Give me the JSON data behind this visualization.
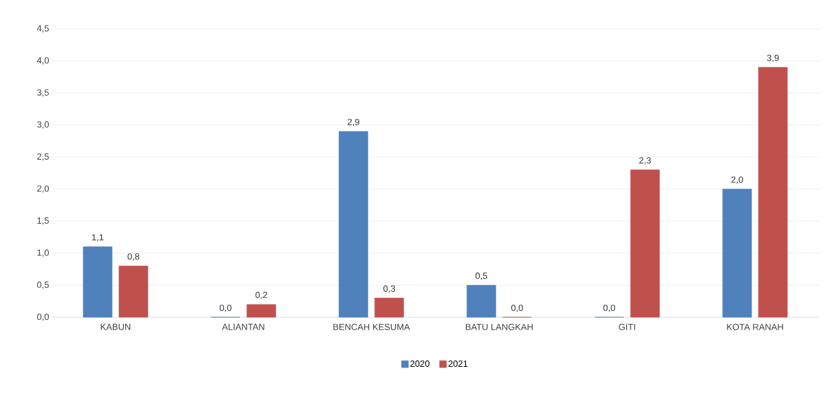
{
  "chart_data": {
    "type": "bar",
    "categories": [
      "KABUN",
      "ALIANTAN",
      "BENCAH KESUMA",
      "BATU LANGKAH",
      "GITI",
      "KOTA RANAH"
    ],
    "series": [
      {
        "name": "2020",
        "color": "#4f81bd",
        "values": [
          1.1,
          0.0,
          2.9,
          0.5,
          0.0,
          2.0
        ],
        "value_labels": [
          "1,1",
          "0,0",
          "2,9",
          "0,5",
          "0,0",
          "2,0"
        ]
      },
      {
        "name": "2021",
        "color": "#c0504d",
        "values": [
          0.8,
          0.2,
          0.3,
          0.0,
          2.3,
          3.9
        ],
        "value_labels": [
          "0,8",
          "0,2",
          "0,3",
          "0,0",
          "2,3",
          "3,9"
        ]
      }
    ],
    "ylim": [
      0,
      4.5
    ],
    "yticks": [
      {
        "value": 0,
        "label": "0,0"
      },
      {
        "value": 0.5,
        "label": "0,5"
      },
      {
        "value": 1,
        "label": "1,0"
      },
      {
        "value": 1.5,
        "label": "1,5"
      },
      {
        "value": 2,
        "label": "2,0"
      },
      {
        "value": 2.5,
        "label": "2,5"
      },
      {
        "value": 3,
        "label": "3,0"
      },
      {
        "value": 3.5,
        "label": "3,5"
      },
      {
        "value": 4,
        "label": "4,0"
      },
      {
        "value": 4.5,
        "label": "4,5"
      }
    ],
    "grid": "y",
    "legend": "bottom"
  }
}
